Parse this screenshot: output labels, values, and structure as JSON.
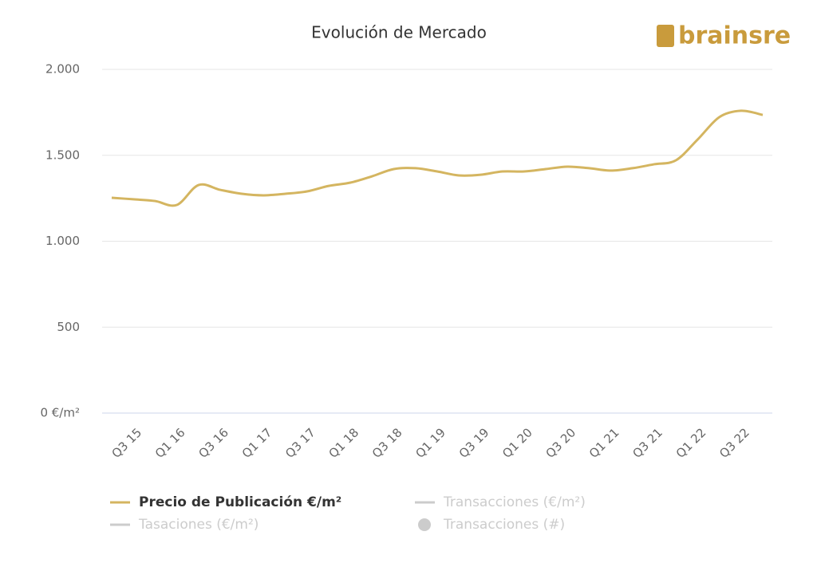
{
  "chart_data": {
    "type": "line",
    "title": "Evolución de Mercado",
    "logo": "brainsre",
    "categories": [
      null,
      "Q3 15",
      null,
      "Q1 16",
      null,
      "Q3 16",
      null,
      "Q1 17",
      null,
      "Q3 17",
      null,
      "Q1 18",
      null,
      "Q3 18",
      null,
      "Q1 19",
      null,
      "Q3 19",
      null,
      "Q1 20",
      null,
      "Q3 20",
      null,
      "Q1 21",
      null,
      "Q3 21",
      null,
      "Q1 22",
      null,
      "Q3 22",
      null
    ],
    "series": [
      {
        "name": "Precio de Publicación €/m²",
        "color": "#d4b560",
        "visible": true,
        "values": [
          1253,
          1244,
          1234,
          1211,
          1327,
          1299,
          1276,
          1267,
          1276,
          1290,
          1322,
          1341,
          1378,
          1420,
          1425,
          1406,
          1383,
          1387,
          1406,
          1406,
          1420,
          1434,
          1425,
          1411,
          1425,
          1448,
          1471,
          1592,
          1722,
          1759,
          1735
        ]
      },
      {
        "name": "Transacciones (€/m²)",
        "color": "#cccccc",
        "visible": false
      },
      {
        "name": "Tasaciones (€/m²)",
        "color": "#cccccc",
        "visible": false
      },
      {
        "name": "Transacciones (#)",
        "color": "#cccccc",
        "visible": false,
        "marker": "circle"
      }
    ],
    "ylim": [
      0,
      2000
    ],
    "yticks": [
      {
        "value": 0,
        "label": "0 €/m²"
      },
      500,
      {
        "value": 1000,
        "label": "1.000"
      },
      {
        "value": 1500,
        "label": "1.500"
      },
      {
        "value": 2000,
        "label": "2.000"
      }
    ],
    "grid": true
  }
}
